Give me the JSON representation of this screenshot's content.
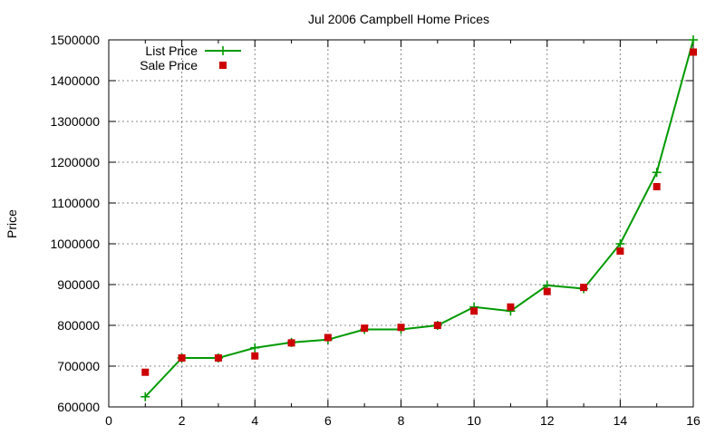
{
  "chart_data": {
    "type": "line",
    "title": "Jul 2006 Campbell Home Prices",
    "xlabel": "",
    "ylabel": "Price",
    "xlim": [
      0,
      16
    ],
    "ylim": [
      600000,
      1500000
    ],
    "xticks": [
      "0",
      "2",
      "4",
      "6",
      "8",
      "10",
      "12",
      "14",
      "16"
    ],
    "yticks": [
      "600000",
      "700000",
      "800000",
      "900000",
      "1000000",
      "1100000",
      "1200000",
      "1300000",
      "1400000",
      "1500000"
    ],
    "grid": true,
    "legend_position": "top-left",
    "x": [
      1,
      2,
      3,
      4,
      5,
      6,
      7,
      8,
      9,
      10,
      11,
      12,
      13,
      14,
      15,
      16
    ],
    "series": [
      {
        "name": "List Price",
        "style": "line-with-plus-points",
        "color": "#009900",
        "values": [
          625000,
          720000,
          720000,
          745000,
          758000,
          765000,
          790000,
          790000,
          800000,
          845000,
          835000,
          898000,
          890000,
          1000000,
          1175000,
          1500000
        ]
      },
      {
        "name": "Sale Price",
        "style": "square-points",
        "color": "#cc0000",
        "values": [
          685000,
          720000,
          720000,
          725000,
          757000,
          770000,
          793000,
          795000,
          800000,
          835000,
          845000,
          883000,
          893000,
          982000,
          1140000,
          1470000
        ]
      }
    ]
  }
}
